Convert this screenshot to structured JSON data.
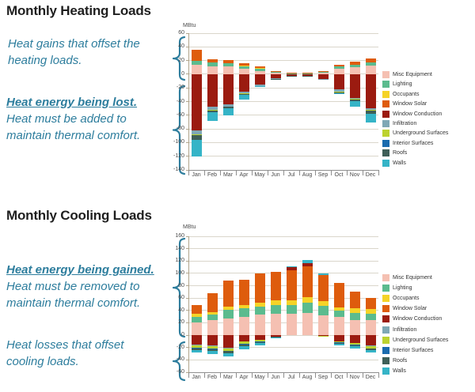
{
  "style": {
    "annotation_color": "#2d7d9d",
    "title_color": "#1f1f1f",
    "grid_color": "#dad6cb",
    "y_axis_color": "#b1a58c",
    "x_axis_color": "#8f8f8f",
    "tick_text_color": "#4a4a4a"
  },
  "sections": [
    {
      "title": "Monthly Heating Loads",
      "notes": [
        {
          "lines": [
            "Heat gains that offset the",
            "heating loads."
          ]
        },
        {
          "lines": [
            "Heat energy being lost.",
            "Heat must be added to",
            "maintain thermal comfort."
          ]
        }
      ]
    },
    {
      "title": "Monthly Cooling Loads",
      "notes": [
        {
          "lines": [
            "Heat energy being gained.",
            "Heat must be removed to",
            "maintain thermal comfort."
          ]
        },
        {
          "lines": [
            "Heat losses that offset",
            "cooling loads."
          ]
        }
      ]
    }
  ],
  "chart_data": [
    {
      "type": "bar",
      "stacked": true,
      "title": "Monthly Heating Loads",
      "ylabel": "MBtu",
      "ylim": [
        -140,
        60
      ],
      "ytick_step": 20,
      "grid": true,
      "legend_position": "right",
      "categories": [
        "Jan",
        "Feb",
        "Mar",
        "Apr",
        "May",
        "Jun",
        "Jul",
        "Aug",
        "Sep",
        "Oct",
        "Nov",
        "Dec"
      ],
      "series": [
        {
          "name": "Misc Equipment",
          "color": "#F5C0B2",
          "values": [
            14,
            12,
            12,
            8,
            5,
            2,
            1,
            1,
            2,
            8,
            10,
            13
          ]
        },
        {
          "name": "Lighting",
          "color": "#5BBB8E",
          "values": [
            6,
            5,
            4,
            4,
            3,
            1,
            0.5,
            0.5,
            1,
            3,
            4,
            4
          ]
        },
        {
          "name": "Occupants",
          "color": "#F5D328",
          "values": [
            0,
            0,
            0,
            1,
            1,
            0,
            0,
            0,
            0,
            0,
            0,
            0
          ]
        },
        {
          "name": "Window Solar",
          "color": "#DE5C0D",
          "values": [
            16,
            5,
            5,
            3,
            2,
            2,
            0.5,
            0.5,
            2,
            3,
            4,
            6
          ]
        },
        {
          "name": "Window Conduction",
          "color": "#9B1B10",
          "values": [
            -82,
            -47,
            -44,
            -26,
            -15,
            -6,
            -2,
            -2,
            -7,
            -22,
            -35,
            -50
          ]
        },
        {
          "name": "Infiltration",
          "color": "#7FA8B5",
          "values": [
            -6,
            -5,
            -3,
            -2,
            -2,
            -1,
            -0.5,
            -0.5,
            -1,
            -4,
            -1,
            -2
          ]
        },
        {
          "name": "Underground Surfaces",
          "color": "#BCD22F",
          "values": [
            -1,
            -1,
            -1,
            -1,
            0,
            0,
            0,
            0,
            0,
            -1,
            -1,
            -1
          ]
        },
        {
          "name": "Interior Surfaces",
          "color": "#1A6BAE",
          "values": [
            0,
            0,
            0,
            0,
            0,
            0,
            0,
            0,
            0,
            0,
            0,
            0
          ]
        },
        {
          "name": "Roofs",
          "color": "#3E5F58",
          "values": [
            -7,
            -3,
            -2,
            -1,
            -1,
            -1,
            -0.5,
            -0.5,
            0,
            -1,
            -2,
            -5
          ]
        },
        {
          "name": "Walls",
          "color": "#35B4C7",
          "values": [
            -24,
            -12,
            -10,
            -7,
            -1,
            0,
            0,
            0,
            0,
            -1,
            -9,
            -13
          ]
        }
      ]
    },
    {
      "type": "bar",
      "stacked": true,
      "title": "Monthly Cooling Loads",
      "ylabel": "MBtu",
      "ylim": [
        -60,
        160
      ],
      "ytick_step": 20,
      "grid": true,
      "legend_position": "right",
      "categories": [
        "Jan",
        "Feb",
        "Mar",
        "Apr",
        "May",
        "Jun",
        "Jul",
        "Aug",
        "Sep",
        "Oct",
        "Nov",
        "Dec"
      ],
      "series": [
        {
          "name": "Misc Equipment",
          "color": "#F5C0B2",
          "values": [
            20,
            24,
            27,
            29,
            33,
            35,
            35,
            36,
            32,
            30,
            25,
            25
          ]
        },
        {
          "name": "Lighting",
          "color": "#5BBB8E",
          "values": [
            10,
            9,
            14,
            14,
            13,
            14,
            14,
            17,
            15,
            10,
            11,
            10
          ]
        },
        {
          "name": "Occupants",
          "color": "#F5D328",
          "values": [
            5,
            4,
            5,
            6,
            6,
            8,
            8,
            8,
            8,
            5,
            8,
            7
          ]
        },
        {
          "name": "Window Solar",
          "color": "#DE5C0D",
          "values": [
            14,
            31,
            42,
            41,
            48,
            46,
            48,
            51,
            42,
            39,
            26,
            18
          ]
        },
        {
          "name": "Window Conduction",
          "color": "#9B1B10",
          "values": [
            -15,
            -17,
            -20,
            -10,
            -7,
            -2,
            5,
            5,
            -1,
            -10,
            -13,
            -17
          ]
        },
        {
          "name": "Infiltration",
          "color": "#7FA8B5",
          "values": [
            -1,
            -1,
            -1,
            0,
            0,
            0,
            0,
            0,
            0,
            0,
            0,
            -1
          ]
        },
        {
          "name": "Underground Surfaces",
          "color": "#BCD22F",
          "values": [
            -4,
            -4,
            -4,
            -4,
            -3,
            -1,
            0,
            0,
            -1,
            -2,
            -2,
            -3
          ]
        },
        {
          "name": "Interior Surfaces",
          "color": "#1A6BAE",
          "values": [
            -1,
            -1,
            -1,
            -1,
            -1,
            0,
            0,
            0,
            0,
            -1,
            -1,
            -1
          ]
        },
        {
          "name": "Roofs",
          "color": "#3E5F58",
          "values": [
            -3,
            -3,
            -3,
            -3,
            -2,
            -1,
            0,
            0,
            0,
            -1,
            -2,
            -2
          ]
        },
        {
          "name": "Walls",
          "color": "#35B4C7",
          "values": [
            -4,
            -4,
            -5,
            -5,
            -3,
            -1,
            2,
            5,
            3,
            -2,
            -3,
            -4
          ]
        }
      ]
    }
  ]
}
